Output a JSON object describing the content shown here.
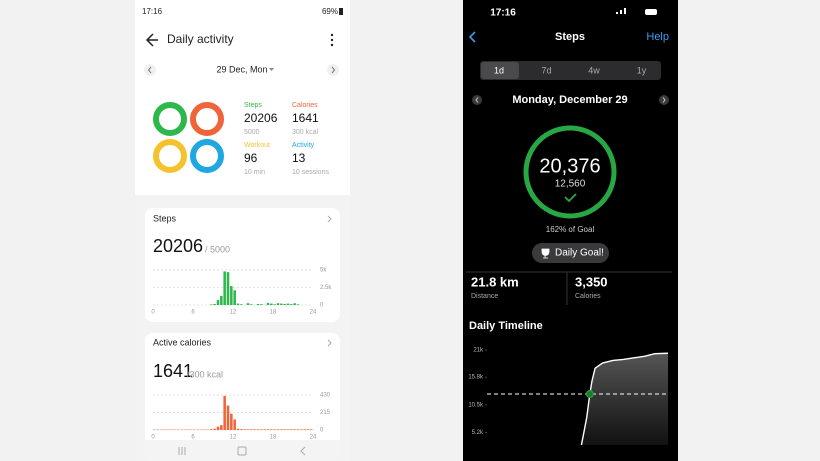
{
  "left_screen": {
    "status_bar": {
      "time": "17:16",
      "battery": "69%"
    },
    "header": {
      "title": "Daily activity"
    },
    "date": "29 Dec, Mon",
    "summary": [
      {
        "label": "Steps",
        "value": "20206",
        "goal": "5000",
        "color": "#2db84b"
      },
      {
        "label": "Calories",
        "value": "1641",
        "goal": "300 kcal",
        "color": "#f0643a"
      },
      {
        "label": "Workout",
        "value": "96",
        "goal": "10 min",
        "color": "#f5c22e"
      },
      {
        "label": "Activity",
        "value": "13",
        "goal": "10 sessions",
        "color": "#1ea7e1"
      }
    ],
    "steps_card": {
      "title": "Steps",
      "total": "20206",
      "goal": "/ 5000",
      "chart": {
        "type": "bar",
        "color": "#2db84b",
        "bins": [
          0,
          0.5,
          1,
          1.5,
          2,
          2.5,
          3,
          3.5,
          4,
          4.5,
          5,
          5.5,
          6,
          6.5,
          7,
          7.5,
          8,
          8.5,
          9,
          9.5,
          10,
          10.5,
          11,
          11.5,
          12,
          12.5,
          13,
          13.5,
          14,
          14.5,
          15,
          15.5,
          16,
          16.5,
          17,
          17.5,
          18,
          18.5,
          19,
          19.5,
          20,
          20.5,
          21,
          21.5,
          22,
          22.5,
          23,
          23.5,
          24
        ],
        "values": [
          0,
          0,
          0,
          0,
          0,
          0,
          0,
          0,
          0,
          0,
          0,
          0,
          0,
          0,
          0,
          0,
          0,
          80,
          150,
          700,
          1300,
          4800,
          4700,
          2700,
          2100,
          200,
          100,
          0,
          250,
          100,
          0,
          150,
          120,
          0,
          300,
          200,
          100,
          250,
          200,
          150,
          200,
          120,
          250,
          100,
          0,
          0,
          0,
          0
        ],
        "xlim": [
          0,
          24
        ],
        "xticks": [
          0,
          6,
          12,
          18,
          24
        ],
        "ylim": [
          0,
          5000
        ],
        "yticks": [
          0,
          {
            "value": 2500,
            "label": "2.5k"
          },
          {
            "value": 5000,
            "label": "5k"
          }
        ]
      }
    },
    "calories_card": {
      "title": "Active calories",
      "total": "1641",
      "goal": "/300 kcal",
      "chart": {
        "type": "bar",
        "color": "#f0643a",
        "bins": [
          0,
          0.5,
          1,
          1.5,
          2,
          2.5,
          3,
          3.5,
          4,
          4.5,
          5,
          5.5,
          6,
          6.5,
          7,
          7.5,
          8,
          8.5,
          9,
          9.5,
          10,
          10.5,
          11,
          11.5,
          12,
          12.5,
          13,
          13.5,
          14,
          14.5,
          15,
          15.5,
          16,
          16.5,
          17,
          17.5,
          18,
          18.5,
          19,
          19.5,
          20,
          20.5,
          21,
          21.5,
          22,
          22.5,
          23,
          23.5,
          24
        ],
        "values": [
          5,
          5,
          5,
          5,
          5,
          5,
          5,
          5,
          5,
          5,
          5,
          5,
          5,
          5,
          5,
          5,
          5,
          10,
          15,
          40,
          60,
          420,
          300,
          200,
          130,
          15,
          10,
          8,
          8,
          8,
          8,
          8,
          8,
          8,
          8,
          8,
          8,
          8,
          8,
          8,
          8,
          8,
          8,
          8,
          8,
          8,
          8,
          8
        ],
        "xlim": [
          0,
          24
        ],
        "xticks": [
          0,
          6,
          12,
          18,
          24
        ],
        "ylim": [
          0,
          430
        ],
        "yticks": [
          0,
          215,
          430
        ]
      }
    }
  },
  "right_screen": {
    "status_bar": {
      "time": "17:16"
    },
    "nav": {
      "title": "Steps",
      "help": "Help"
    },
    "tabs": [
      "1d",
      "7d",
      "4w",
      "1y"
    ],
    "date": "Monday, December 29",
    "ring": {
      "steps": "20,376",
      "goal": {
        "value": 12560,
        "label": "12,560"
      },
      "percent": "162% of Goal"
    },
    "badge": "Daily Goal!",
    "stats": [
      {
        "value": "21.8 km",
        "label": "Distance"
      },
      {
        "value": "3,350",
        "label": "Calories"
      }
    ],
    "timeline": {
      "title": "Daily Timeline",
      "chart": {
        "type": "line",
        "color": "#ffffff",
        "x": [
          9.0,
          9.5,
          9.8,
          10.0,
          10.3,
          11.0,
          12.0,
          13.0,
          14.0,
          15.0,
          16.0,
          17.25
        ],
        "values": [
          2800,
          8000,
          12560,
          15000,
          17500,
          18500,
          19000,
          19200,
          19500,
          19800,
          20300,
          20376
        ],
        "xlim": [
          0,
          17.25
        ],
        "ylim": [
          2800,
          21000
        ],
        "yticks": [
          {
            "value": 5200,
            "label": "5.2k"
          },
          {
            "value": 10500,
            "label": "10.5k"
          },
          {
            "value": 15800,
            "label": "15.8k"
          },
          {
            "value": 21000,
            "label": "21k"
          }
        ]
      }
    }
  }
}
